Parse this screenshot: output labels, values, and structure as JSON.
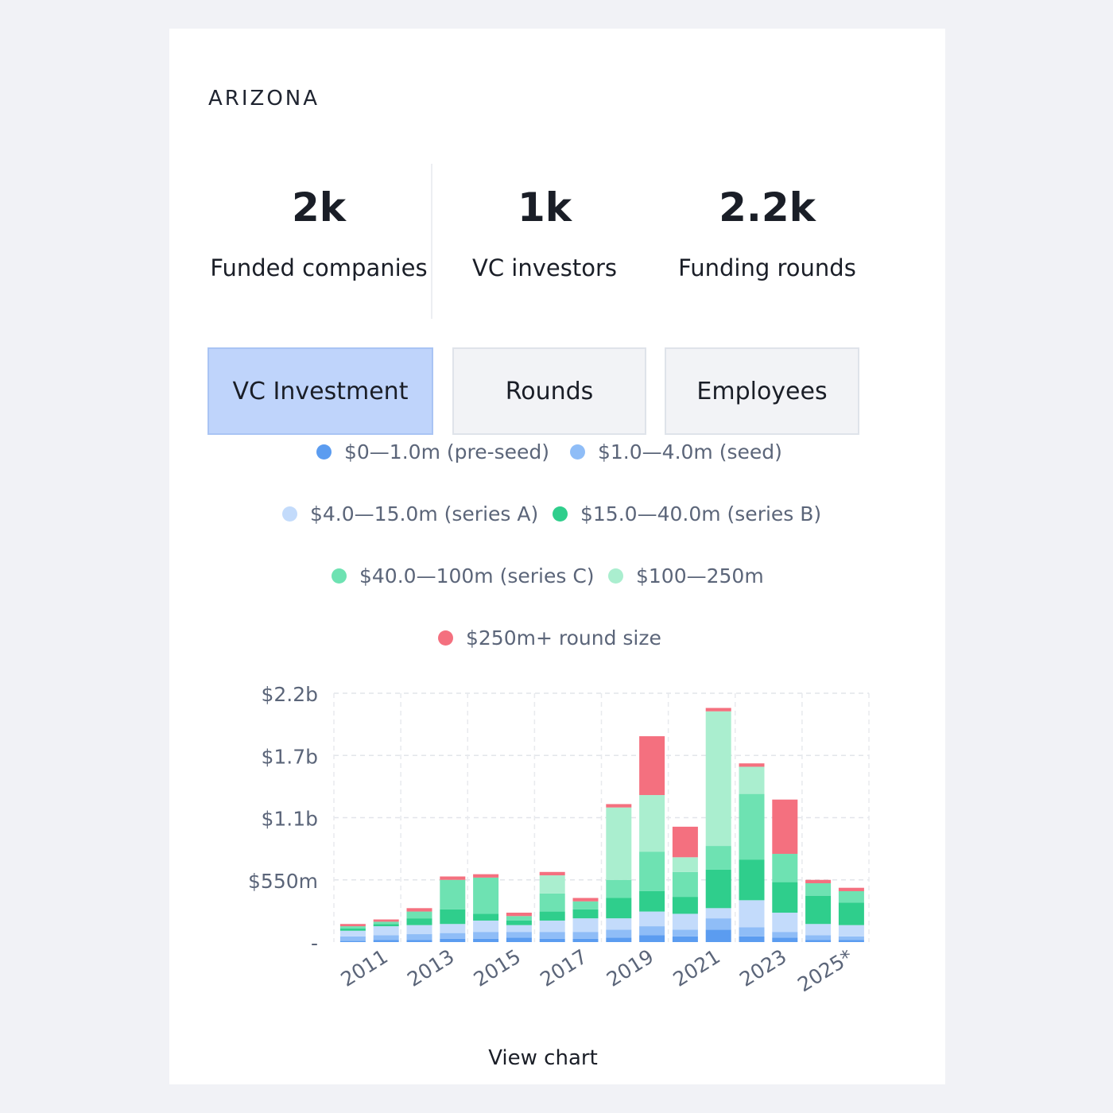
{
  "region": "ARIZONA",
  "stats": [
    {
      "value": "2k",
      "label": "Funded companies"
    },
    {
      "value": "1k",
      "label": "VC investors"
    },
    {
      "value": "2.2k",
      "label": "Funding rounds"
    }
  ],
  "tabs": [
    {
      "label": "VC Investment",
      "active": true
    },
    {
      "label": "Rounds",
      "active": false
    },
    {
      "label": "Employees",
      "active": false
    }
  ],
  "legend": [
    {
      "label": "$0—1.0m (pre-seed)",
      "color": "#5b9cf0"
    },
    {
      "label": "$1.0—4.0m (seed)",
      "color": "#8fbdf7"
    },
    {
      "label": "$4.0—15.0m (series A)",
      "color": "#c3dbfb"
    },
    {
      "label": "$15.0—40.0m (series B)",
      "color": "#2fce8c"
    },
    {
      "label": "$40.0—100m (series C)",
      "color": "#6ee2b2"
    },
    {
      "label": "$100—250m",
      "color": "#aaeecf"
    },
    {
      "label": "$250m+ round size",
      "color": "#f4707f"
    }
  ],
  "chart_data": {
    "type": "bar",
    "stacked": true,
    "categories": [
      "2010",
      "2011",
      "2012",
      "2013",
      "2014",
      "2015",
      "2016",
      "2017",
      "2018",
      "2019",
      "2020",
      "2021",
      "2022",
      "2023",
      "2024",
      "2025*"
    ],
    "x_tick_labels": [
      "2011",
      "2013",
      "2015",
      "2017",
      "2019",
      "2021",
      "2023",
      "2025*"
    ],
    "y_tick_labels": [
      "-",
      "$550m",
      "$1.1b",
      "$1.7b",
      "$2.2b"
    ],
    "ylim": [
      0,
      2.2
    ],
    "units": "$b",
    "series": [
      {
        "name": "$0—1.0m (pre-seed)",
        "values": [
          0.01,
          0.02,
          0.02,
          0.03,
          0.03,
          0.04,
          0.03,
          0.03,
          0.04,
          0.06,
          0.05,
          0.11,
          0.05,
          0.04,
          0.02,
          0.02
        ]
      },
      {
        "name": "$1.0—4.0m (seed)",
        "values": [
          0.04,
          0.04,
          0.05,
          0.05,
          0.06,
          0.05,
          0.06,
          0.06,
          0.07,
          0.08,
          0.06,
          0.1,
          0.08,
          0.05,
          0.04,
          0.03
        ]
      },
      {
        "name": "$4.0—15.0m (series A)",
        "values": [
          0.05,
          0.08,
          0.08,
          0.08,
          0.1,
          0.06,
          0.1,
          0.12,
          0.1,
          0.13,
          0.14,
          0.09,
          0.24,
          0.17,
          0.1,
          0.1
        ]
      },
      {
        "name": "$15.0—40.0m (series B)",
        "values": [
          0.02,
          0.02,
          0.06,
          0.13,
          0.06,
          0.04,
          0.08,
          0.08,
          0.18,
          0.18,
          0.15,
          0.34,
          0.36,
          0.27,
          0.25,
          0.2
        ]
      },
      {
        "name": "$40.0—100m (series C)",
        "values": [
          0.02,
          0.02,
          0.06,
          0.26,
          0.32,
          0.04,
          0.16,
          0.07,
          0.16,
          0.35,
          0.22,
          0.21,
          0.58,
          0.25,
          0.11,
          0.1
        ]
      },
      {
        "name": "$100—250m",
        "values": [
          0.0,
          0.0,
          0.0,
          0.0,
          0.0,
          0.0,
          0.16,
          0.0,
          0.64,
          0.5,
          0.13,
          1.19,
          0.24,
          0.0,
          0.0,
          0.0
        ]
      },
      {
        "name": "$250m+ round size",
        "values": [
          0.02,
          0.02,
          0.03,
          0.03,
          0.03,
          0.03,
          0.03,
          0.03,
          0.03,
          0.52,
          0.27,
          0.03,
          0.03,
          0.48,
          0.03,
          0.03
        ]
      }
    ]
  },
  "view_chart_label": "View chart"
}
